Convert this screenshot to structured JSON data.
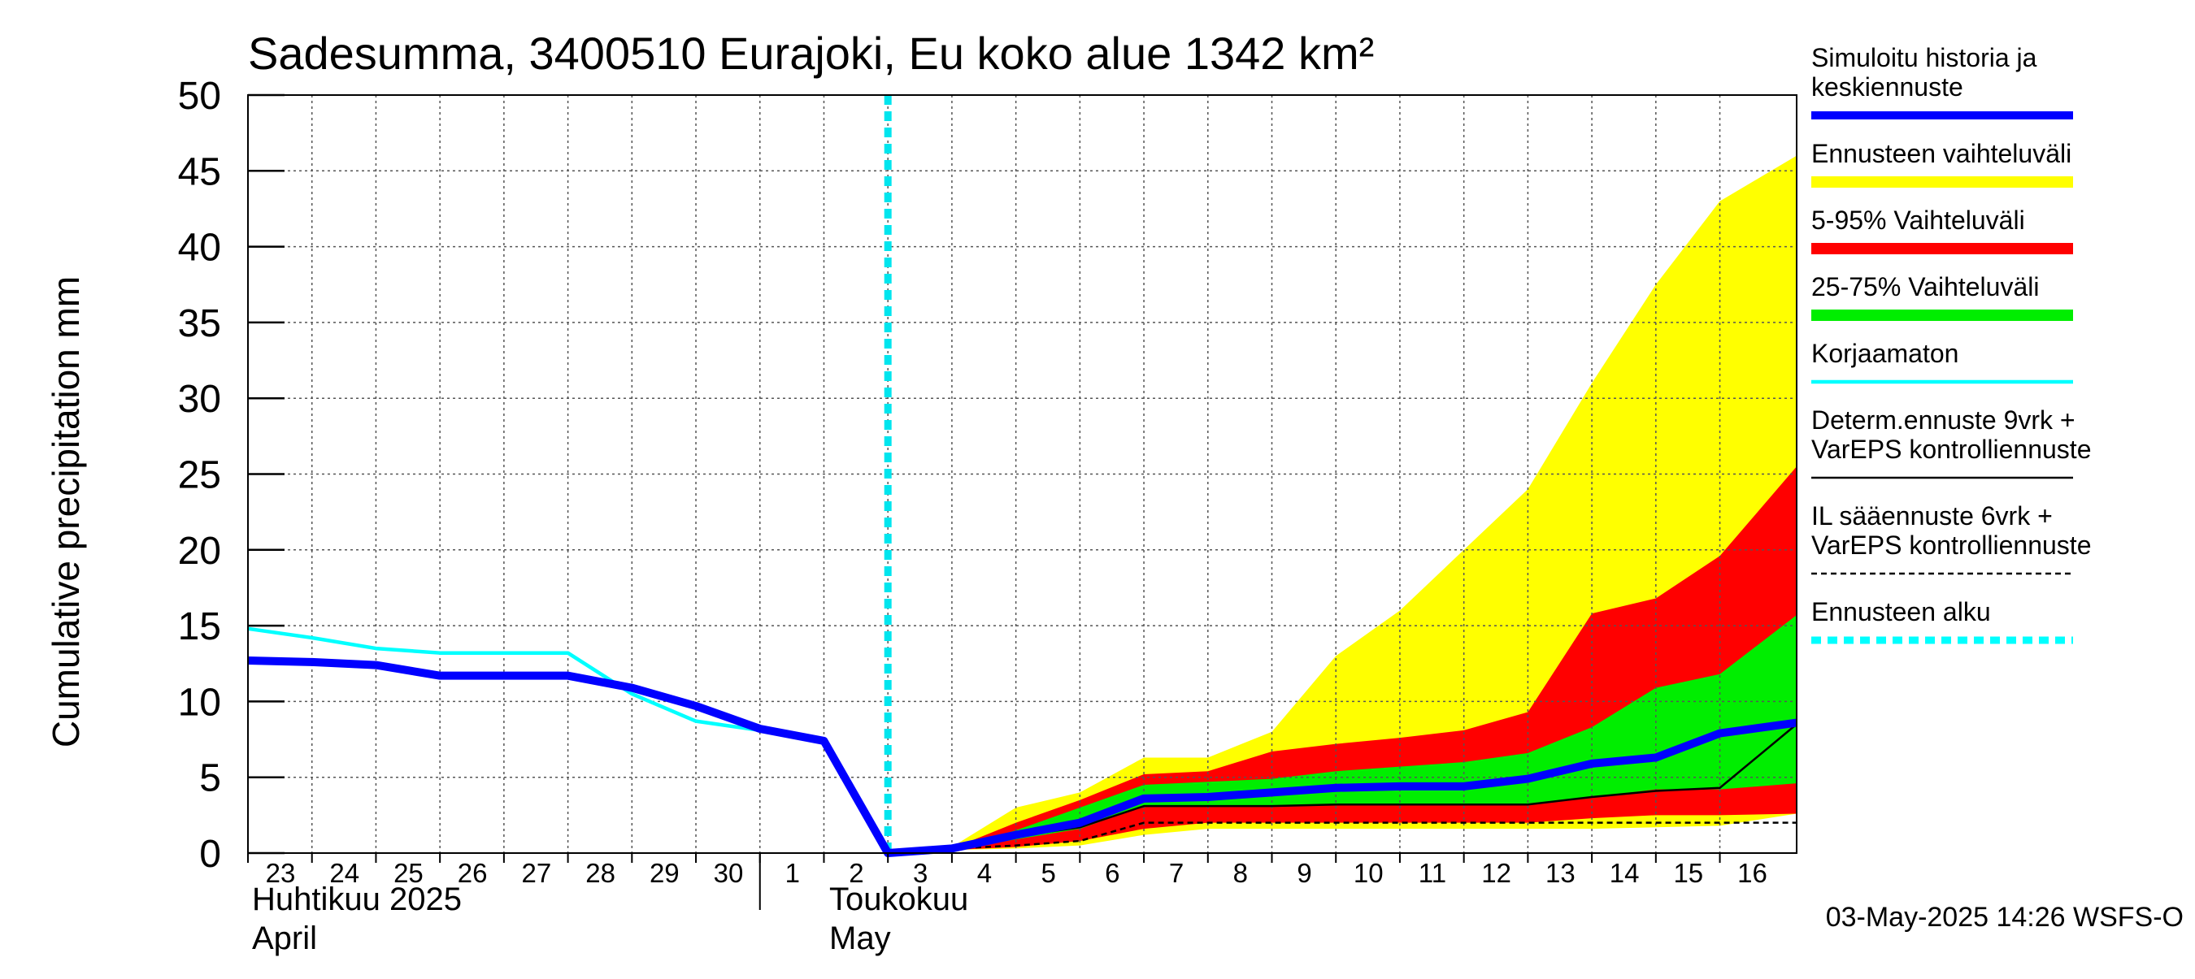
{
  "chart_data": {
    "type": "area",
    "title": "Sadesumma, 3400510 Eurajoki, Eu koko alue 1342 km²",
    "ylabel": "Cumulative precipitation   mm",
    "ylim": [
      0,
      50
    ],
    "yticks": [
      0,
      5,
      10,
      15,
      20,
      25,
      30,
      35,
      40,
      45,
      50
    ],
    "x_start": "2025-04-23",
    "x_end": "2025-05-16",
    "xlim_days": [
      0,
      24.2
    ],
    "day_labels": [
      "23",
      "24",
      "25",
      "26",
      "27",
      "28",
      "29",
      "30",
      "1",
      "2",
      "3",
      "4",
      "5",
      "6",
      "7",
      "8",
      "9",
      "10",
      "11",
      "12",
      "13",
      "14",
      "15",
      "16"
    ],
    "month_labels": {
      "april_fi": "Huhtikuu  2025",
      "april_en": "April",
      "may_fi": "Toukokuu",
      "may_en": "May"
    },
    "grid": true,
    "legend_position": "right",
    "forecast_start_day": 10.0,
    "series": [
      {
        "name": "Ennusteen vaihteluväli",
        "kind": "band",
        "color": "#ffff00",
        "x": [
          10,
          11,
          12,
          13,
          14,
          15,
          16,
          17,
          18,
          19,
          20,
          21,
          22,
          23,
          24.2
        ],
        "upper": [
          0,
          0.4,
          3,
          4,
          6.3,
          6.3,
          8,
          13,
          16,
          20,
          24,
          31,
          37.5,
          43,
          46
        ],
        "lower": [
          0,
          0.2,
          0.3,
          0.5,
          1.2,
          1.6,
          1.6,
          1.6,
          1.6,
          1.6,
          1.6,
          1.6,
          1.7,
          1.8,
          2.6
        ]
      },
      {
        "name": "5-95% Vaihteluväli",
        "kind": "band",
        "color": "#ff0000",
        "x": [
          10,
          11,
          12,
          13,
          14,
          15,
          16,
          17,
          18,
          19,
          20,
          21,
          22,
          23,
          24.2
        ],
        "upper": [
          0,
          0.3,
          2,
          3.5,
          5.2,
          5.4,
          6.7,
          7.2,
          7.6,
          8.1,
          9.3,
          15.8,
          16.8,
          19.6,
          25.5
        ],
        "lower": [
          0,
          0.2,
          0.4,
          0.8,
          1.6,
          2,
          2,
          2,
          2,
          2,
          2,
          2.3,
          2.5,
          2.5,
          2.6
        ]
      },
      {
        "name": "25-75% Vaihteluväli",
        "kind": "band",
        "color": "#00ee00",
        "x": [
          10,
          11,
          12,
          13,
          14,
          15,
          16,
          17,
          18,
          19,
          20,
          21,
          22,
          23,
          24.2
        ],
        "upper": [
          0,
          0.3,
          1.5,
          3,
          4.5,
          4.7,
          4.9,
          5.4,
          5.7,
          6,
          6.6,
          8.3,
          10.9,
          11.8,
          15.7
        ],
        "lower": [
          0,
          0.2,
          0.9,
          1.6,
          3.1,
          3.1,
          3.1,
          3.2,
          3.2,
          3.2,
          3.2,
          3.7,
          4.2,
          4.2,
          4.6
        ]
      },
      {
        "name": "Korjaamaton",
        "kind": "line",
        "color": "#00ffff",
        "x": [
          0,
          1,
          2,
          3,
          4,
          5,
          6,
          7,
          8,
          9,
          10
        ],
        "y": [
          14.8,
          14.2,
          13.5,
          13.2,
          13.2,
          13.2,
          10.5,
          8.7,
          8.1,
          7.3,
          0
        ]
      },
      {
        "name": "IL sääennuste 6vrk  +  VarEPS kontrolliennuste",
        "kind": "dashed",
        "color": "#000000",
        "x": [
          10,
          11,
          12,
          13,
          14,
          15,
          16,
          17,
          18,
          19,
          20,
          21,
          22,
          23,
          24.2
        ],
        "y": [
          0,
          0.3,
          0.5,
          0.8,
          2,
          2,
          2,
          2,
          2,
          2,
          2,
          2,
          2,
          2,
          2
        ]
      },
      {
        "name": "Determ.ennuste 9vrk  +  VarEPS kontrolliennuste",
        "kind": "line",
        "color": "#000000",
        "x": [
          10,
          11,
          12,
          13,
          14,
          15,
          16,
          17,
          18,
          19,
          20,
          21,
          22,
          23,
          24.2
        ],
        "y": [
          0,
          0.3,
          1.1,
          1.7,
          3.1,
          3.1,
          3.1,
          3.2,
          3.2,
          3.2,
          3.2,
          3.7,
          4.1,
          4.3,
          8.5
        ]
      },
      {
        "name": "Simuloitu historia ja keskiennuste",
        "kind": "thick",
        "color": "#0000ff",
        "x": [
          0,
          1,
          2,
          3,
          4,
          5,
          6,
          7,
          8,
          9,
          10,
          11,
          12,
          13,
          14,
          15,
          16,
          17,
          18,
          19,
          20,
          21,
          22,
          23,
          24.2
        ],
        "y": [
          12.7,
          12.6,
          12.4,
          11.7,
          11.7,
          11.7,
          10.9,
          9.7,
          8.2,
          7.4,
          0,
          0.3,
          1.2,
          2,
          3.6,
          3.7,
          4,
          4.3,
          4.4,
          4.4,
          4.9,
          5.9,
          6.3,
          7.9,
          8.6
        ]
      }
    ]
  },
  "legend": {
    "items": [
      {
        "label_lines": [
          "Simuloitu historia ja",
          "keskiennuste"
        ],
        "color": "#0000ff",
        "style": "thick"
      },
      {
        "label_lines": [
          "Ennusteen vaihteluväli"
        ],
        "color": "#ffff00",
        "style": "band"
      },
      {
        "label_lines": [
          "5-95% Vaihteluväli"
        ],
        "color": "#ff0000",
        "style": "band"
      },
      {
        "label_lines": [
          "25-75% Vaihteluväli"
        ],
        "color": "#00ee00",
        "style": "band"
      },
      {
        "label_lines": [
          "Korjaamaton"
        ],
        "color": "#00ffff",
        "style": "thin"
      },
      {
        "label_lines": [
          "Determ.ennuste 9vrk  +",
          "VarEPS kontrolliennuste"
        ],
        "color": "#000000",
        "style": "thin"
      },
      {
        "label_lines": [
          "IL sääennuste 6vrk  +",
          "  VarEPS kontrolliennuste"
        ],
        "color": "#000000",
        "style": "dashed"
      },
      {
        "label_lines": [
          "Ennusteen alku"
        ],
        "color": "#00ffff",
        "style": "dotted"
      }
    ]
  },
  "footer": {
    "timestamp": "03-May-2025 14:26 WSFS-O"
  }
}
